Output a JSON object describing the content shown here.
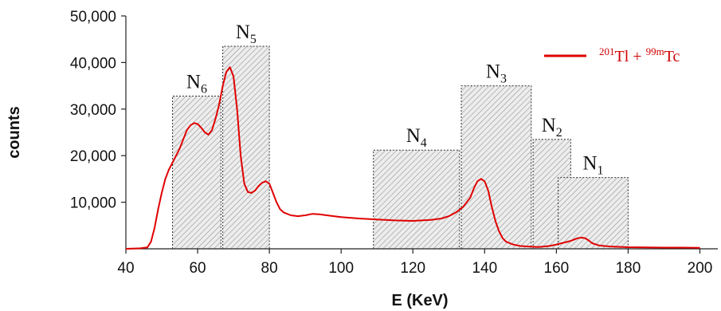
{
  "chart_data": {
    "type": "line",
    "xlabel": "E (KeV)",
    "ylabel": "counts",
    "xlim": [
      40,
      205
    ],
    "ylim": [
      0,
      50000
    ],
    "x_ticks": [
      40,
      60,
      80,
      100,
      120,
      140,
      160,
      180,
      200
    ],
    "x_tick_labels": [
      "40",
      "60",
      "80",
      "100",
      "120",
      "140",
      "160",
      "180",
      "200"
    ],
    "y_ticks": [
      10000,
      20000,
      30000,
      40000,
      50000
    ],
    "y_tick_labels": [
      "10,000",
      "20,000",
      "30,000",
      "40,000",
      "50,000"
    ],
    "grid": false,
    "legend": {
      "position": "top-right",
      "parts": [
        "201",
        "Tl + ",
        "99m",
        "Tc"
      ]
    },
    "series": [
      {
        "name": "201Tl + 99mTc",
        "color": "#e00000",
        "x": [
          40,
          44,
          46,
          47,
          48,
          49,
          50,
          51,
          52,
          53,
          54,
          55,
          56,
          57,
          58,
          59,
          60,
          61,
          62,
          63,
          64,
          65,
          66,
          67,
          68,
          69,
          70,
          71,
          72,
          73,
          74,
          75,
          76,
          77,
          78,
          79,
          80,
          81,
          82,
          83,
          84,
          86,
          88,
          90,
          92,
          94,
          96,
          100,
          105,
          110,
          115,
          120,
          125,
          128,
          130,
          132,
          134,
          136,
          137,
          138,
          139,
          140,
          141,
          142,
          143,
          144,
          145,
          146,
          148,
          150,
          152,
          155,
          158,
          160,
          162,
          164,
          165,
          166,
          167,
          168,
          169,
          170,
          172,
          175,
          180,
          185,
          190,
          195,
          200
        ],
        "y": [
          0,
          100,
          300,
          1500,
          4500,
          8500,
          12000,
          15000,
          17000,
          18500,
          20000,
          21500,
          23500,
          25500,
          26500,
          27000,
          26800,
          26000,
          25000,
          24500,
          25500,
          28000,
          31000,
          35000,
          38000,
          39000,
          37000,
          30000,
          20000,
          14000,
          12200,
          12000,
          12500,
          13500,
          14200,
          14500,
          14000,
          12000,
          10000,
          8500,
          7800,
          7200,
          7000,
          7200,
          7500,
          7400,
          7200,
          6800,
          6500,
          6300,
          6100,
          6000,
          6200,
          6500,
          7000,
          7800,
          9000,
          11000,
          13000,
          14500,
          15000,
          14500,
          12500,
          9000,
          6000,
          3800,
          2300,
          1500,
          900,
          600,
          500,
          400,
          600,
          900,
          1300,
          1700,
          2000,
          2300,
          2400,
          2300,
          1800,
          1200,
          700,
          500,
          350,
          300,
          250,
          250,
          200
        ]
      }
    ],
    "windows": [
      {
        "label": "N",
        "sub": "6",
        "x0": 53,
        "x1": 66.5,
        "top": 32800
      },
      {
        "label": "N",
        "sub": "5",
        "x0": 67,
        "x1": 80,
        "top": 43500
      },
      {
        "label": "N",
        "sub": "4",
        "x0": 109,
        "x1": 133,
        "top": 21200
      },
      {
        "label": "N",
        "sub": "3",
        "x0": 133.5,
        "x1": 153,
        "top": 35000
      },
      {
        "label": "N",
        "sub": "2",
        "x0": 153.5,
        "x1": 164,
        "top": 23500
      },
      {
        "label": "N",
        "sub": "1",
        "x0": 160.5,
        "x1": 180,
        "top": 15300
      }
    ]
  }
}
